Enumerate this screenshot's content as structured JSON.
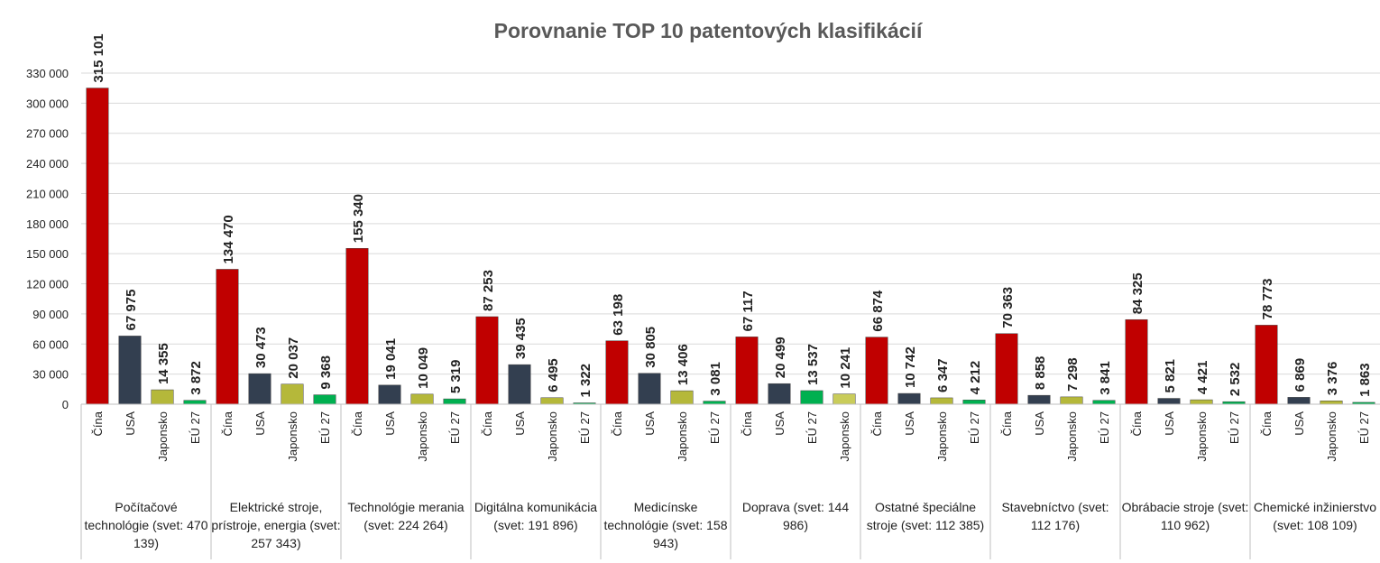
{
  "chart_data": {
    "type": "bar",
    "title": "Porovnanie TOP 10 patentových klasifikácií",
    "ylim": [
      0,
      330000
    ],
    "yticks": [
      0,
      {
        "value": 30000,
        "label": "30 000"
      },
      {
        "value": 60000,
        "label": "60 000"
      },
      {
        "value": 90000,
        "label": "90 000"
      },
      {
        "value": 120000,
        "label": "120 000"
      },
      {
        "value": 150000,
        "label": "150 000"
      },
      {
        "value": 180000,
        "label": "180 000"
      },
      {
        "value": 210000,
        "label": "210 000"
      },
      {
        "value": 240000,
        "label": "240 000"
      },
      {
        "value": 270000,
        "label": "270 000"
      },
      {
        "value": 300000,
        "label": "300 000"
      },
      {
        "value": 330000,
        "label": "330 000"
      }
    ],
    "grid": true,
    "groups": [
      {
        "label": "Počítačové technológie (svet: 470 139)",
        "categories": [
          "Čína",
          "USA",
          "Japonsko",
          "EÚ 27"
        ],
        "values": [
          315101,
          67975,
          14355,
          3872
        ],
        "value_labels": [
          "315 101",
          "67 975",
          "14 355",
          "3 872"
        ],
        "colors": [
          "#c00000",
          "#333f50",
          "#b5b83a",
          "#00b050"
        ]
      },
      {
        "label": "Elektrické stroje, prístroje, energia (svet: 257 343)",
        "categories": [
          "Čína",
          "USA",
          "Japonsko",
          "EÚ 27"
        ],
        "values": [
          134470,
          30473,
          20037,
          9368
        ],
        "value_labels": [
          "134 470",
          "30 473",
          "20 037",
          "9 368"
        ],
        "colors": [
          "#c00000",
          "#333f50",
          "#b5b83a",
          "#00b050"
        ]
      },
      {
        "label": "Technológie merania (svet: 224 264)",
        "categories": [
          "Čína",
          "USA",
          "Japonsko",
          "EÚ 27"
        ],
        "values": [
          155340,
          19041,
          10049,
          5319
        ],
        "value_labels": [
          "155 340",
          "19 041",
          "10 049",
          "5 319"
        ],
        "colors": [
          "#c00000",
          "#333f50",
          "#b5b83a",
          "#00b050"
        ]
      },
      {
        "label": "Digitálna komunikácia (svet: 191 896)",
        "categories": [
          "Čína",
          "USA",
          "Japonsko",
          "EÚ 27"
        ],
        "values": [
          87253,
          39435,
          6495,
          1322
        ],
        "value_labels": [
          "87 253",
          "39 435",
          "6 495",
          "1 322"
        ],
        "colors": [
          "#c00000",
          "#333f50",
          "#b5b83a",
          "#00b050"
        ]
      },
      {
        "label": "Medicínske technológie (svet: 158 943)",
        "categories": [
          "Čína",
          "USA",
          "Japonsko",
          "EÚ 27"
        ],
        "values": [
          63198,
          30805,
          13406,
          3081
        ],
        "value_labels": [
          "63 198",
          "30 805",
          "13 406",
          "3 081"
        ],
        "colors": [
          "#c00000",
          "#333f50",
          "#b5b83a",
          "#00b050"
        ]
      },
      {
        "label": "Doprava (svet: 144 986)",
        "categories": [
          "Čína",
          "USA",
          "EÚ 27",
          "Japonsko"
        ],
        "values": [
          67117,
          20499,
          13537,
          10241
        ],
        "value_labels": [
          "67 117",
          "20 499",
          "13 537",
          "10 241"
        ],
        "colors": [
          "#c00000",
          "#333f50",
          "#00b050",
          "#c9cc5a"
        ]
      },
      {
        "label": "Ostatné špeciálne stroje (svet: 112 385)",
        "categories": [
          "Čína",
          "USA",
          "Japonsko",
          "EÚ 27"
        ],
        "values": [
          66874,
          10742,
          6347,
          4212
        ],
        "value_labels": [
          "66 874",
          "10 742",
          "6 347",
          "4 212"
        ],
        "colors": [
          "#c00000",
          "#333f50",
          "#b5b83a",
          "#00b050"
        ]
      },
      {
        "label": "Stavebníctvo (svet: 112 176)",
        "categories": [
          "Čína",
          "USA",
          "Japonsko",
          "EÚ 27"
        ],
        "values": [
          70363,
          8858,
          7298,
          3841
        ],
        "value_labels": [
          "70 363",
          "8 858",
          "7 298",
          "3 841"
        ],
        "colors": [
          "#c00000",
          "#333f50",
          "#b5b83a",
          "#00b050"
        ]
      },
      {
        "label": "Obrábacie stroje (svet: 110 962)",
        "categories": [
          "Čína",
          "USA",
          "Japonsko",
          "EÚ 27"
        ],
        "values": [
          84325,
          5821,
          4421,
          2532
        ],
        "value_labels": [
          "84 325",
          "5 821",
          "4 421",
          "2 532"
        ],
        "colors": [
          "#c00000",
          "#333f50",
          "#b5b83a",
          "#00b050"
        ]
      },
      {
        "label": "Chemické inžinierstvo (svet: 108 109)",
        "categories": [
          "Čína",
          "USA",
          "Japonsko",
          "EÚ 27"
        ],
        "values": [
          78773,
          6869,
          3376,
          1863
        ],
        "value_labels": [
          "78 773",
          "6 869",
          "3 376",
          "1 863"
        ],
        "colors": [
          "#c00000",
          "#333f50",
          "#b5b83a",
          "#00b050"
        ]
      }
    ]
  }
}
